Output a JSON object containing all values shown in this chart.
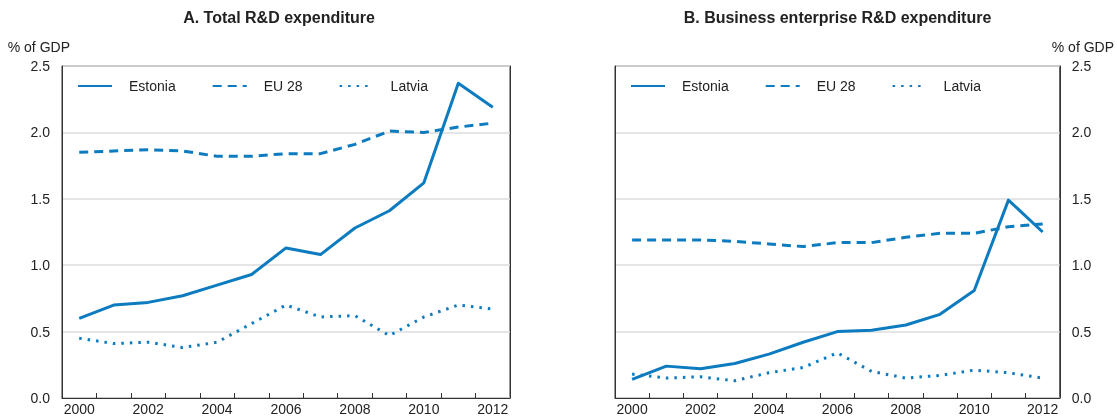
{
  "chart_data": [
    {
      "type": "line",
      "title": "A. Total R&D expenditure",
      "ylabel": "% of GDP",
      "categories": [
        "2000",
        null,
        "2002",
        null,
        "2004",
        null,
        "2006",
        null,
        "2008",
        null,
        "2010",
        null,
        "2012"
      ],
      "ylim": [
        0,
        2.5
      ],
      "yticks": [
        {
          "value": 0,
          "label": "0.0"
        },
        {
          "value": 0.5,
          "label": "0.5"
        },
        {
          "value": 1,
          "label": "1.0"
        },
        {
          "value": 1.5,
          "label": "1.5"
        },
        {
          "value": 2,
          "label": "2.0"
        },
        {
          "value": 2.5,
          "label": "2.5"
        }
      ],
      "grid": "y",
      "legend": "top left",
      "marker": "none",
      "series": [
        {
          "name": "Estonia",
          "color": "#0d7bbf",
          "line_style": "solid",
          "values": [
            0.6,
            0.7,
            0.72,
            0.77,
            0.85,
            0.93,
            1.13,
            1.08,
            1.28,
            1.41,
            1.62,
            2.37,
            2.19
          ]
        },
        {
          "name": "EU 28",
          "color": "#0d7bbf",
          "line_style": "dashed",
          "values": [
            1.85,
            1.86,
            1.87,
            1.86,
            1.82,
            1.82,
            1.84,
            1.84,
            1.91,
            2.01,
            2.0,
            2.04,
            2.07
          ]
        },
        {
          "name": "Latvia",
          "color": "#0d7bbf",
          "line_style": "dotted",
          "values": [
            0.45,
            0.41,
            0.42,
            0.38,
            0.42,
            0.56,
            0.7,
            0.61,
            0.62,
            0.47,
            0.61,
            0.7,
            0.67
          ]
        }
      ]
    },
    {
      "type": "line",
      "title": "B. Business enterprise R&D expenditure",
      "y2label": "% of GDP",
      "categories": [
        "2000",
        null,
        "2002",
        null,
        "2004",
        null,
        "2006",
        null,
        "2008",
        null,
        "2010",
        null,
        "2012"
      ],
      "y2lim": [
        0,
        2.5
      ],
      "y2ticks": [
        {
          "value": 0,
          "label": "0.0"
        },
        {
          "value": 0.5,
          "label": "0.5"
        },
        {
          "value": 1,
          "label": "1.0"
        },
        {
          "value": 1.5,
          "label": "1.5"
        },
        {
          "value": 2,
          "label": "2.0"
        },
        {
          "value": 2.5,
          "label": "2.5"
        }
      ],
      "grid": "y",
      "legend": "top left",
      "marker": "none",
      "series": [
        {
          "name": "Estonia",
          "color": "#0d7bbf",
          "line_style": "solid",
          "axis": "y2",
          "values": [
            0.14,
            0.24,
            0.22,
            0.26,
            0.33,
            0.42,
            0.5,
            0.51,
            0.55,
            0.63,
            0.81,
            1.49,
            1.25
          ]
        },
        {
          "name": "EU 28",
          "color": "#0d7bbf",
          "line_style": "dashed",
          "axis": "y2",
          "values": [
            1.19,
            1.19,
            1.19,
            1.18,
            1.16,
            1.14,
            1.17,
            1.17,
            1.21,
            1.24,
            1.24,
            1.29,
            1.31
          ]
        },
        {
          "name": "Latvia",
          "color": "#0d7bbf",
          "line_style": "dotted",
          "axis": "y2",
          "values": [
            0.18,
            0.15,
            0.16,
            0.13,
            0.19,
            0.23,
            0.34,
            0.2,
            0.15,
            0.17,
            0.21,
            0.19,
            0.15
          ]
        }
      ]
    }
  ]
}
